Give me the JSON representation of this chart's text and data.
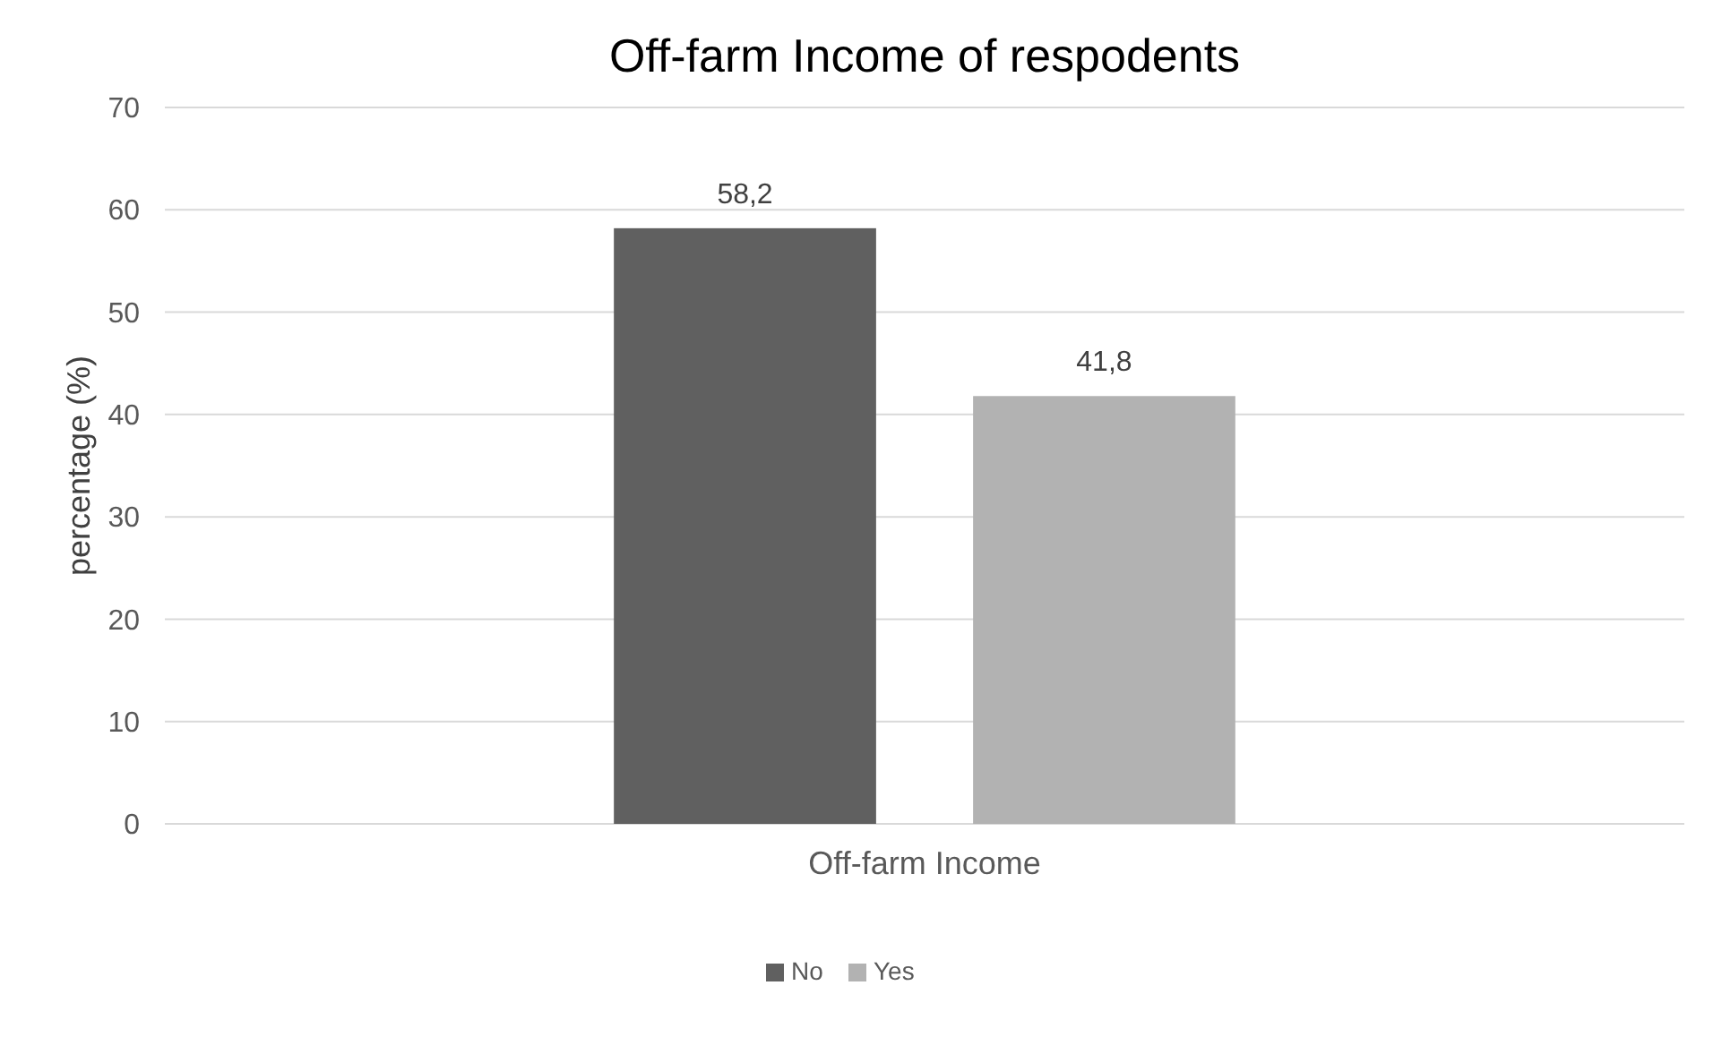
{
  "chart_data": {
    "type": "bar",
    "title": "Off-farm Income of respodents",
    "ylabel": "percentage (%)",
    "categories": [
      "Off-farm Income"
    ],
    "series": [
      {
        "name": "No",
        "color": "#606060",
        "values": [
          58.2
        ],
        "value_labels": [
          "58,2"
        ]
      },
      {
        "name": "Yes",
        "color": "#b2b2b2",
        "values": [
          41.8
        ],
        "value_labels": [
          "41,8"
        ]
      }
    ],
    "ylim": [
      0,
      70
    ],
    "yticks": [
      0,
      10,
      20,
      30,
      40,
      50,
      60,
      70
    ],
    "grid": "y",
    "legend": "bottom"
  }
}
